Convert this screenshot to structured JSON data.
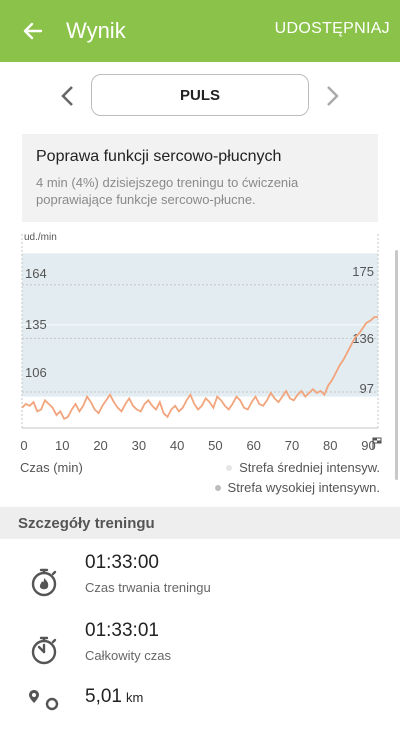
{
  "header": {
    "title": "Wynik",
    "share_label": "UDOSTĘPNIAJ"
  },
  "selector": {
    "current": "PULS"
  },
  "info": {
    "title": "Poprawa funkcji sercowo-płucnych",
    "description": "4 min (4%) dzisiejszego treningu to ćwiczenia poprawiające funkcje sercowo-płucne."
  },
  "colors": {
    "accent": "#8bc34a",
    "line": "#f2a47c",
    "zone": "#e3edf1"
  },
  "chart_data": {
    "type": "line",
    "ylabel": "ud./min",
    "xlabel": "Czas (min)",
    "x_ticks": [
      "0",
      "10",
      "20",
      "30",
      "40",
      "50",
      "60",
      "70",
      "80",
      "90"
    ],
    "xlim": [
      0,
      93
    ],
    "ylim": [
      80,
      185
    ],
    "left_labels": [
      "164",
      "135",
      "106"
    ],
    "right_labels": [
      "175",
      "136",
      "97"
    ],
    "zones": [
      {
        "name": "Strefa średniej intensyw.",
        "range": [
          97,
          136
        ]
      },
      {
        "name": "Strefa wysokiej intensywn.",
        "range": [
          136,
          175
        ]
      }
    ],
    "series": [
      {
        "x": [
          0,
          1,
          2,
          3,
          4,
          5,
          6,
          7,
          8,
          9,
          10,
          11,
          12,
          13,
          14,
          15,
          16,
          17,
          18,
          19,
          20,
          21,
          22,
          23,
          24,
          25,
          26,
          27,
          28,
          29,
          30,
          31,
          32,
          33,
          34,
          35,
          36,
          37,
          38,
          39,
          40,
          41,
          42,
          43,
          44,
          45,
          46,
          47,
          48,
          49,
          50,
          51,
          52,
          53,
          54,
          55,
          56,
          57,
          58,
          59,
          60,
          61,
          62,
          63,
          64,
          65,
          66,
          67,
          68,
          69,
          70,
          71,
          72,
          73,
          74,
          75,
          76,
          77,
          78,
          79,
          80,
          81,
          82,
          83,
          84,
          85,
          86,
          87,
          88,
          89,
          90,
          91,
          92,
          93
        ],
        "values": [
          91,
          93,
          92,
          94,
          89,
          90,
          95,
          93,
          91,
          87,
          89,
          85,
          86,
          90,
          93,
          89,
          92,
          97,
          94,
          90,
          88,
          92,
          95,
          98,
          94,
          91,
          89,
          93,
          96,
          92,
          90,
          89,
          93,
          95,
          92,
          90,
          94,
          88,
          86,
          90,
          92,
          89,
          91,
          95,
          98,
          93,
          90,
          92,
          96,
          94,
          91,
          97,
          95,
          92,
          90,
          93,
          97,
          95,
          91,
          90,
          94,
          97,
          93,
          92,
          95,
          99,
          96,
          94,
          97,
          100,
          96,
          95,
          98,
          100,
          97,
          99,
          101,
          99,
          100,
          98,
          103,
          106,
          110,
          114,
          117,
          121,
          125,
          129,
          131,
          134,
          137,
          138,
          140,
          140
        ]
      }
    ]
  },
  "details": {
    "title": "Szczegóły treningu",
    "items": [
      {
        "value": "01:33:00",
        "unit": "",
        "label": "Czas trwania treningu"
      },
      {
        "value": "01:33:01",
        "unit": "",
        "label": "Całkowity czas"
      },
      {
        "value": "5,01",
        "unit": "km",
        "label": ""
      }
    ]
  }
}
